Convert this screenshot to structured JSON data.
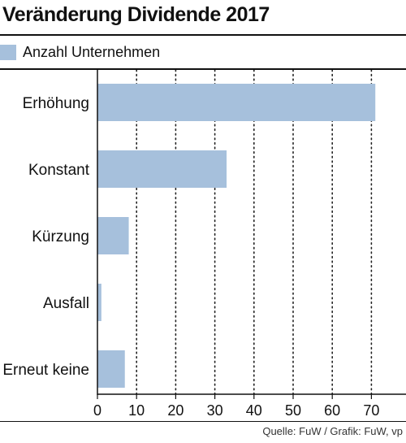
{
  "title": "Veränderung Dividende 2017",
  "source": "Quelle: FuW / Grafik: FuW, vp",
  "colors": {
    "bar": "#a6c0dc",
    "axis": "#111111",
    "grid": "#222222"
  },
  "chart_data": {
    "type": "bar",
    "orientation": "horizontal",
    "categories": [
      "Erhöhung",
      "Konstant",
      "Kürzung",
      "Ausfall",
      "Erneut keine"
    ],
    "series": [
      {
        "name": "Anzahl Unternehmen",
        "values": [
          71,
          33,
          8,
          1,
          7
        ]
      }
    ],
    "xlim": [
      0,
      75
    ],
    "xticks": [
      0,
      10,
      20,
      30,
      40,
      50,
      60,
      70
    ],
    "grid": "vertical-dotted",
    "legend": "top-left"
  }
}
